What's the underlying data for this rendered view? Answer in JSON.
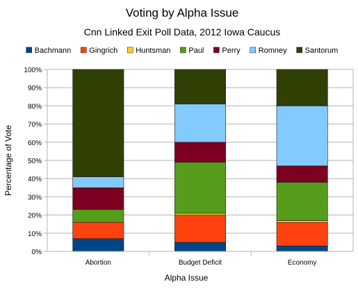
{
  "chart_data": {
    "type": "bar",
    "stacked": "percent",
    "title": "Voting by Alpha Issue",
    "subtitle": "Cnn Linked Exit Poll Data, 2012 Iowa Caucus",
    "xlabel": "Alpha Issue",
    "ylabel": "Percentage of Vote",
    "ylim": [
      0,
      100
    ],
    "yticks": [
      "0%",
      "10%",
      "20%",
      "30%",
      "40%",
      "50%",
      "60%",
      "70%",
      "80%",
      "90%",
      "100%"
    ],
    "categories": [
      "Abortion",
      "Budget Deficit",
      "Economy"
    ],
    "grid": true,
    "legend_position": "top",
    "series": [
      {
        "name": "Bachmann",
        "color": "#004586",
        "values": [
          7,
          5,
          3
        ]
      },
      {
        "name": "Gingrich",
        "color": "#ff420e",
        "values": [
          9,
          15,
          13
        ]
      },
      {
        "name": "Huntsman",
        "color": "#ffd320",
        "values": [
          0,
          1,
          1
        ]
      },
      {
        "name": "Paul",
        "color": "#579d1c",
        "values": [
          7,
          28,
          21
        ]
      },
      {
        "name": "Perry",
        "color": "#7e0021",
        "values": [
          12,
          11,
          9
        ]
      },
      {
        "name": "Romney",
        "color": "#83caff",
        "values": [
          6,
          21,
          33
        ]
      },
      {
        "name": "Santorum",
        "color": "#314004",
        "values": [
          59,
          19,
          20
        ]
      }
    ]
  }
}
